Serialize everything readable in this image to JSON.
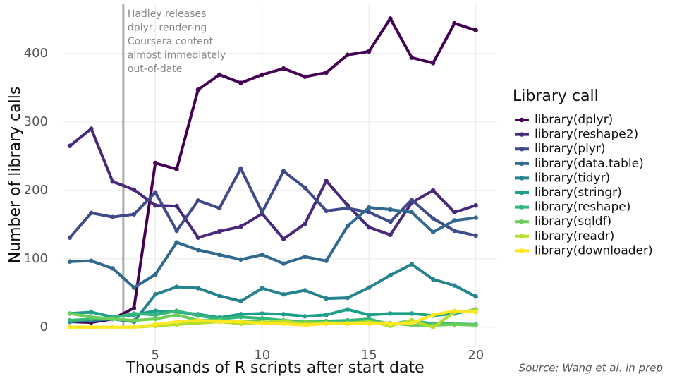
{
  "chart_data": {
    "type": "line",
    "x_label": "Thousands of R scripts after start date",
    "y_label": "Number of library calls",
    "legend_title": "Library call",
    "caption": "Source: Wang et al. in prep",
    "annotation": {
      "x": 3.5,
      "color": "#aaaaaa",
      "lines": [
        "Hadley releases",
        "dplyr, rendering",
        "Coursera content",
        "almost immediately",
        "out-of-date"
      ]
    },
    "x": [
      1,
      2,
      3,
      4,
      5,
      6,
      7,
      8,
      9,
      10,
      11,
      12,
      13,
      14,
      15,
      16,
      17,
      18,
      19,
      20
    ],
    "xlim": [
      0.7,
      21.0
    ],
    "xticks": [
      5,
      10,
      15,
      20
    ],
    "ylim": [
      -27,
      473
    ],
    "yticks": [
      0,
      100,
      200,
      300,
      400
    ],
    "grid": true,
    "legend_position": "right",
    "series": [
      {
        "name": "library(dplyr)",
        "color": "#440154",
        "values": [
          8,
          7,
          12,
          28,
          240,
          231,
          347,
          369,
          357,
          369,
          378,
          366,
          372,
          398,
          403,
          451,
          394,
          386,
          444,
          434
        ]
      },
      {
        "name": "library(reshape2)",
        "color": "#482878",
        "values": [
          265,
          290,
          213,
          201,
          178,
          177,
          131,
          140,
          147,
          166,
          129,
          151,
          214,
          178,
          146,
          135,
          182,
          200,
          168,
          178
        ]
      },
      {
        "name": "library(plyr)",
        "color": "#3E4A89",
        "values": [
          131,
          167,
          161,
          165,
          197,
          141,
          185,
          174,
          232,
          168,
          228,
          204,
          170,
          174,
          168,
          154,
          186,
          159,
          141,
          134
        ]
      },
      {
        "name": "library(data.table)",
        "color": "#31688E",
        "values": [
          96,
          97,
          86,
          58,
          77,
          124,
          113,
          106,
          99,
          106,
          93,
          103,
          97,
          148,
          175,
          172,
          168,
          139,
          156,
          160
        ]
      },
      {
        "name": "library(tidyr)",
        "color": "#26828E",
        "values": [
          8,
          10,
          12,
          8,
          48,
          59,
          57,
          46,
          38,
          57,
          48,
          54,
          42,
          43,
          58,
          76,
          92,
          70,
          61,
          45
        ]
      },
      {
        "name": "library(stringr)",
        "color": "#1F9E89",
        "values": [
          20,
          22,
          15,
          18,
          24,
          22,
          19,
          14,
          19,
          20,
          19,
          16,
          18,
          26,
          18,
          20,
          20,
          17,
          20,
          26
        ]
      },
      {
        "name": "library(reshape)",
        "color": "#35B779",
        "values": [
          10,
          12,
          14,
          20,
          18,
          24,
          17,
          12,
          15,
          13,
          10,
          8,
          9,
          10,
          12,
          4,
          10,
          5,
          5,
          4
        ]
      },
      {
        "name": "library(sqldf)",
        "color": "#6DCD59",
        "values": [
          20,
          15,
          12,
          10,
          12,
          18,
          10,
          10,
          8,
          8,
          6,
          8,
          7,
          6,
          8,
          6,
          3,
          3,
          4,
          3
        ]
      },
      {
        "name": "library(readr)",
        "color": "#B4DE2C",
        "values": [
          0,
          0,
          0,
          0,
          2,
          4,
          6,
          8,
          5,
          7,
          9,
          5,
          6,
          6,
          8,
          2,
          10,
          0,
          22,
          25
        ]
      },
      {
        "name": "library(downloader)",
        "color": "#FDE725",
        "values": [
          0,
          0,
          0,
          0,
          4,
          8,
          10,
          8,
          8,
          6,
          5,
          3,
          5,
          5,
          5,
          5,
          6,
          18,
          24,
          22
        ]
      }
    ]
  }
}
